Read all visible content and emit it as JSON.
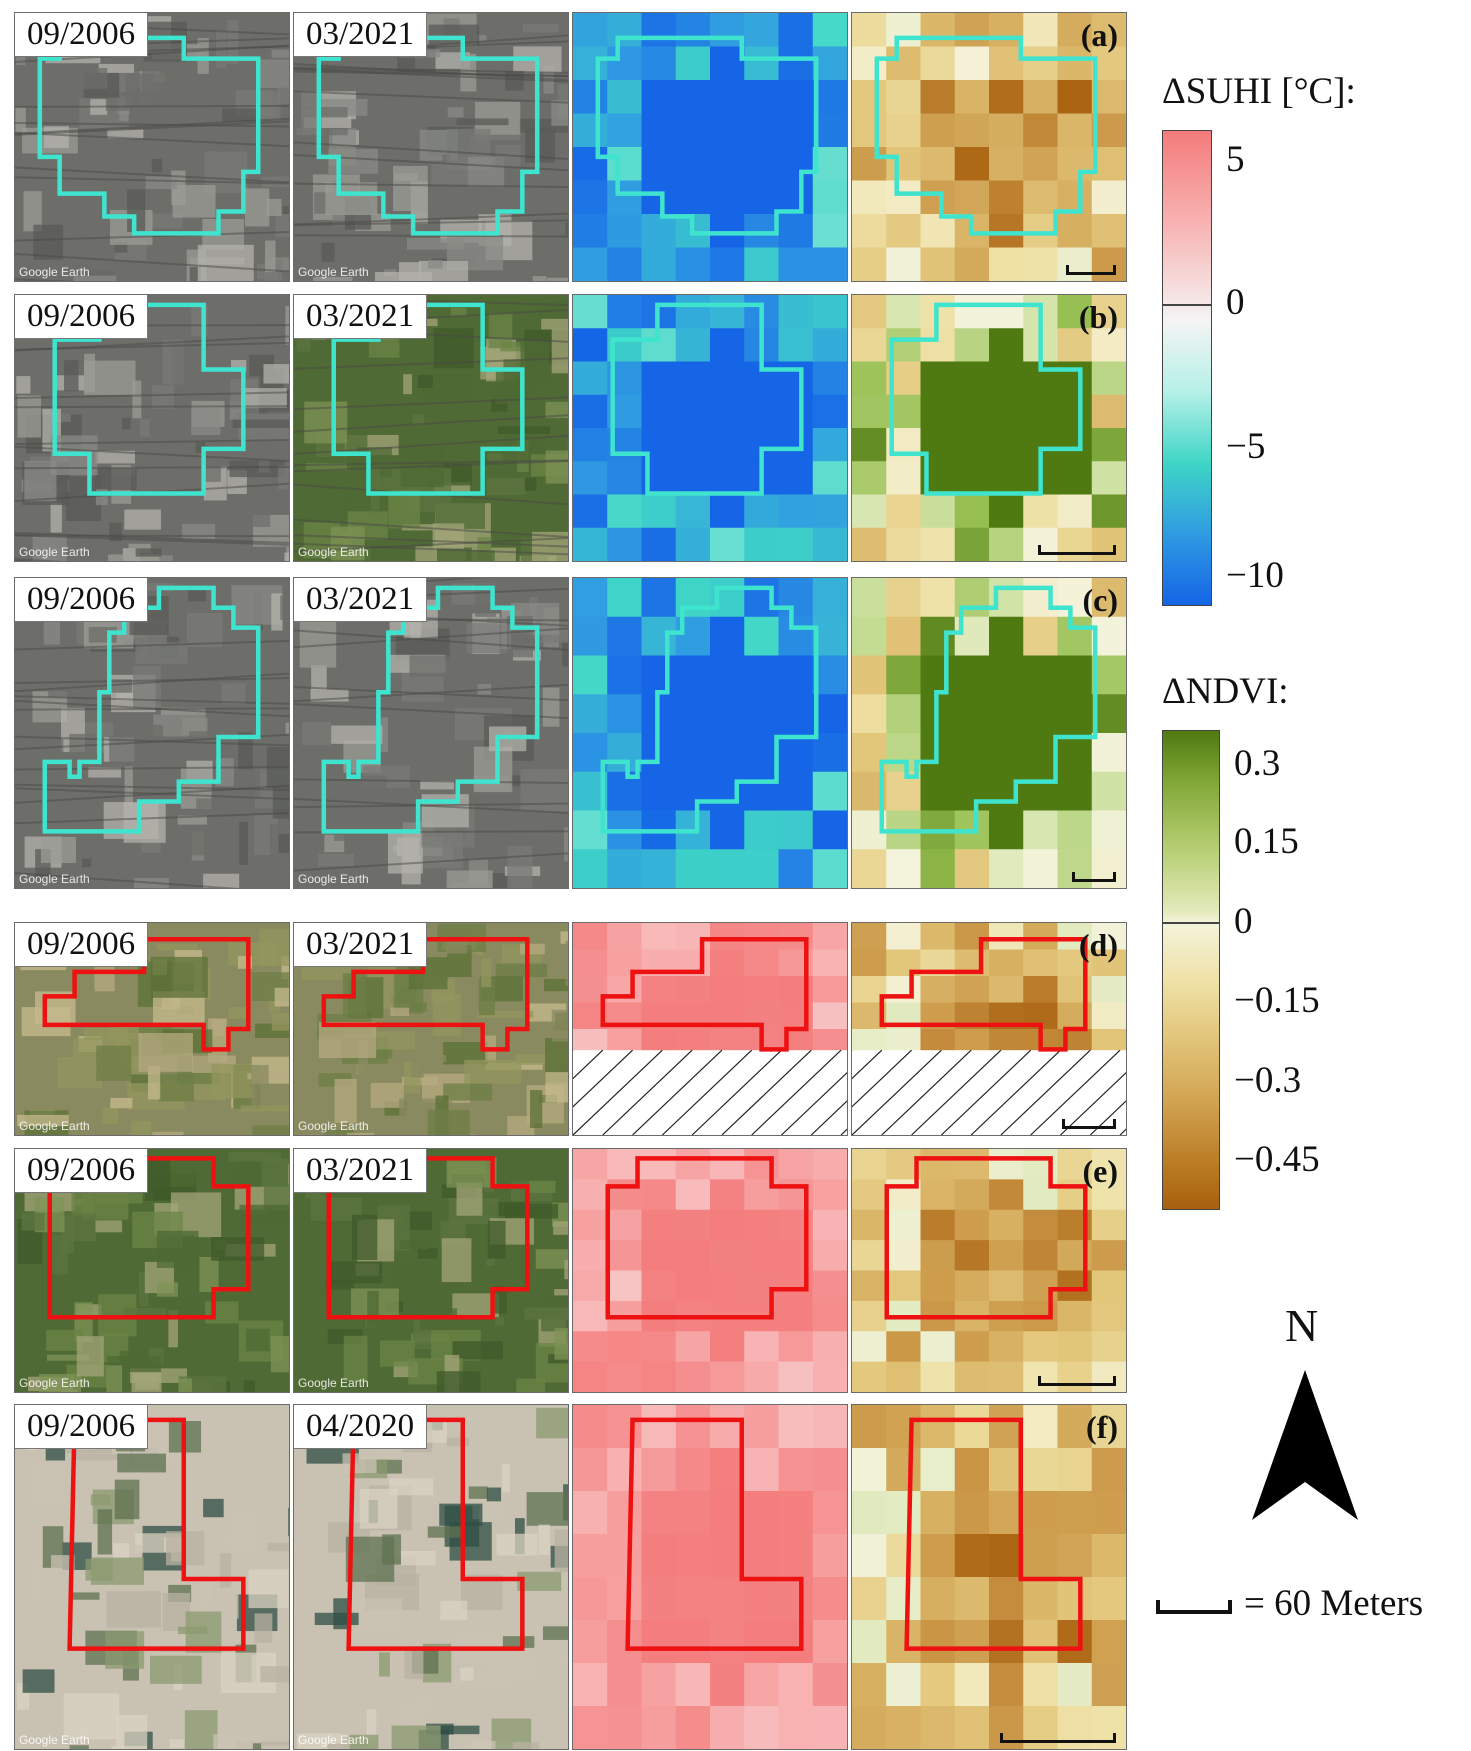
{
  "panels": [
    {
      "letter": "(a)",
      "date_before": "09/2006",
      "date_after": "03/2021",
      "type": "cooling"
    },
    {
      "letter": "(b)",
      "date_before": "09/2006",
      "date_after": "03/2021",
      "type": "cooling"
    },
    {
      "letter": "(c)",
      "date_before": "09/2006",
      "date_after": "03/2021",
      "type": "cooling"
    },
    {
      "letter": "(d)",
      "date_before": "09/2006",
      "date_after": "03/2021",
      "type": "warming"
    },
    {
      "letter": "(e)",
      "date_before": "09/2006",
      "date_after": "03/2021",
      "type": "warming"
    },
    {
      "letter": "(f)",
      "date_before": "09/2006",
      "date_after": "04/2020",
      "type": "warming"
    }
  ],
  "watermark": "Google Earth",
  "suhi_legend": {
    "title": "ΔSUHI [°C]:",
    "ticks": [
      "5",
      "0",
      "−5",
      "−10"
    ],
    "range": [
      -10,
      5
    ],
    "colors": {
      "max": "#f47b7b",
      "zero": "#f4f4f4",
      "mid_neg": "#3fd6c6",
      "min": "#1565e6"
    }
  },
  "ndvi_legend": {
    "title": "ΔNDVI:",
    "ticks": [
      "0.3",
      "0.15",
      "0",
      "−0.15",
      "−0.3",
      "−0.45"
    ],
    "range": [
      -0.45,
      0.3
    ],
    "colors": {
      "max": "#4f7a12",
      "zero": "#f4f3dc",
      "min": "#a8600e"
    }
  },
  "north": {
    "label": "N",
    "icon": "north-arrow-icon"
  },
  "scale": {
    "label": "= 60 Meters",
    "icon": "scale-bar-icon"
  },
  "outline_colors": {
    "cooling": "#3fe4cf",
    "warming": "#ee1111"
  }
}
